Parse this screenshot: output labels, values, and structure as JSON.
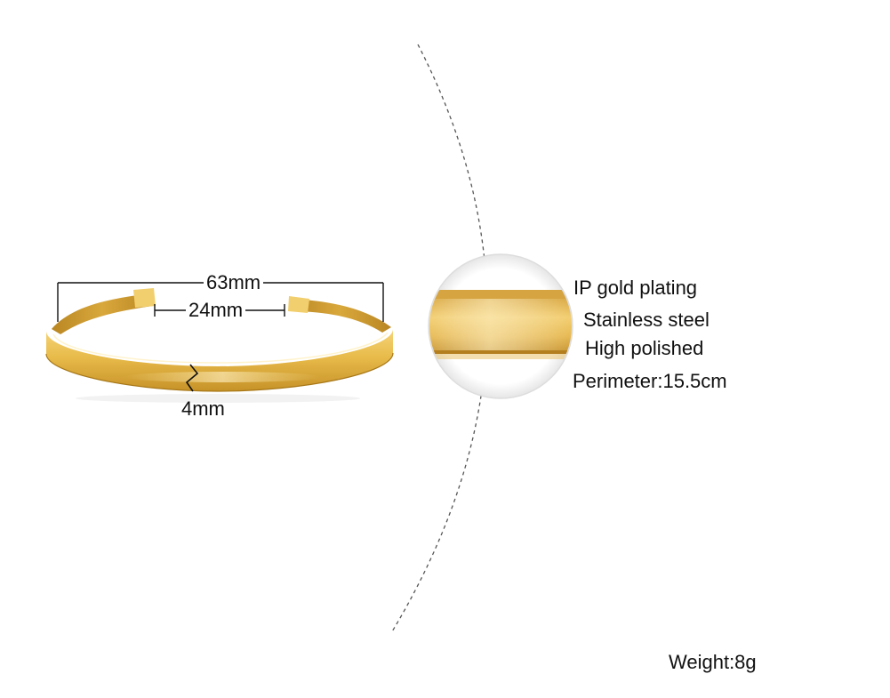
{
  "dimensions": {
    "outer_width": "63mm",
    "opening": "24mm",
    "band_width": "4mm"
  },
  "specs": {
    "plating": "IP gold plating",
    "material": "Stainless steel",
    "finish": "High polished",
    "perimeter": "Perimeter:15.5cm",
    "weight": "Weight:8g"
  },
  "colors": {
    "gold_light": "#f3cf6d",
    "gold_mid": "#e3b444",
    "gold_dark": "#b98622",
    "gold_inner": "#cf9f36",
    "divider": "#555555",
    "text": "#111111"
  }
}
